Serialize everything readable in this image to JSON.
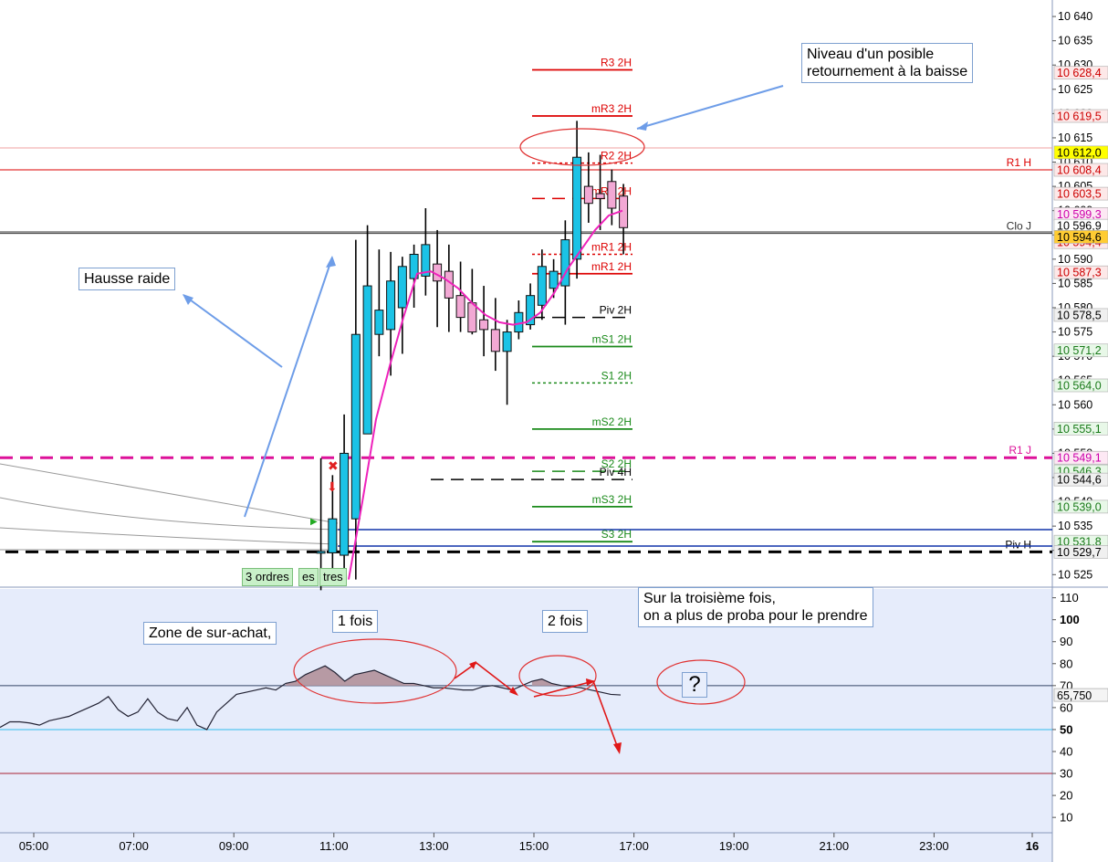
{
  "chart_data": [
    {
      "type": "candlestick",
      "price_axis": {
        "ticks": [
          10640,
          10635,
          10630,
          10625,
          10620,
          10615,
          10610,
          10605,
          10600,
          10595,
          10590,
          10585,
          10580,
          10575,
          10570,
          10565,
          10560,
          10555,
          10550,
          10545,
          10540,
          10535,
          10530,
          10525
        ],
        "range": [
          10522.8,
          10643.4
        ]
      },
      "time_axis": {
        "labels": [
          "05:00",
          "07:00",
          "09:00",
          "11:00",
          "13:00",
          "15:00",
          "17:00",
          "19:00",
          "21:00",
          "23:00",
          "16"
        ]
      },
      "candles": [
        {
          "o": 10529.8,
          "h": 10549.0,
          "l": 10521.8,
          "c": 10529.8,
          "up": true
        },
        {
          "o": 10529.5,
          "h": 10545.5,
          "l": 10524.0,
          "c": 10536.5,
          "up": true
        },
        {
          "o": 10529.0,
          "h": 10558.0,
          "l": 10524.0,
          "c": 10550.0,
          "up": true
        },
        {
          "o": 10536.5,
          "h": 10594.0,
          "l": 10524.0,
          "c": 10574.5,
          "up": true
        },
        {
          "o": 10554.0,
          "h": 10597.0,
          "l": 10554.0,
          "c": 10584.5,
          "up": true
        },
        {
          "o": 10574.5,
          "h": 10592.0,
          "l": 10570.0,
          "c": 10579.5,
          "up": true
        },
        {
          "o": 10575.5,
          "h": 10591.5,
          "l": 10566.0,
          "c": 10585.5,
          "up": true
        },
        {
          "o": 10580.0,
          "h": 10590.5,
          "l": 10570.5,
          "c": 10588.5,
          "up": true
        },
        {
          "o": 10586.0,
          "h": 10593.0,
          "l": 10580.0,
          "c": 10591.0,
          "up": true
        },
        {
          "o": 10586.5,
          "h": 10600.5,
          "l": 10582.5,
          "c": 10593.0,
          "up": true
        },
        {
          "o": 10589.0,
          "h": 10596.0,
          "l": 10576.0,
          "c": 10585.5,
          "up": false
        },
        {
          "o": 10587.5,
          "h": 10593.0,
          "l": 10575.0,
          "c": 10582.0,
          "up": false
        },
        {
          "o": 10582.5,
          "h": 10589.5,
          "l": 10575.0,
          "c": 10578.0,
          "up": false
        },
        {
          "o": 10581.0,
          "h": 10588.0,
          "l": 10574.5,
          "c": 10575.0,
          "up": false
        },
        {
          "o": 10577.5,
          "h": 10584.5,
          "l": 10570.0,
          "c": 10575.5,
          "up": false
        },
        {
          "o": 10575.5,
          "h": 10582.0,
          "l": 10567.0,
          "c": 10571.0,
          "up": false
        },
        {
          "o": 10571.0,
          "h": 10577.5,
          "l": 10560.0,
          "c": 10575.0,
          "up": true
        },
        {
          "o": 10575.0,
          "h": 10581.5,
          "l": 10573.5,
          "c": 10579.0,
          "up": true
        },
        {
          "o": 10576.5,
          "h": 10585.0,
          "l": 10575.5,
          "c": 10582.5,
          "up": true
        },
        {
          "o": 10580.5,
          "h": 10592.0,
          "l": 10577.5,
          "c": 10588.5,
          "up": true
        },
        {
          "o": 10584.0,
          "h": 10590.0,
          "l": 10582.0,
          "c": 10587.5,
          "up": true
        },
        {
          "o": 10584.5,
          "h": 10598.0,
          "l": 10576.5,
          "c": 10594.0,
          "up": true
        },
        {
          "o": 10590.0,
          "h": 10618.5,
          "l": 10586.0,
          "c": 10611.0,
          "up": true
        },
        {
          "o": 10605.0,
          "h": 10612.0,
          "l": 10597.5,
          "c": 10601.5,
          "up": false
        },
        {
          "o": 10603.5,
          "h": 10611.5,
          "l": 10596.0,
          "c": 10602.5,
          "up": false
        },
        {
          "o": 10606.0,
          "h": 10608.5,
          "l": 10597.0,
          "c": 10600.5,
          "up": false
        },
        {
          "o": 10603.0,
          "h": 10605.5,
          "l": 10591.0,
          "c": 10596.5,
          "up": false
        }
      ],
      "moving_average": [
        10524,
        10540,
        10557,
        10568,
        10578,
        10587,
        10587.5,
        10586,
        10584,
        10581,
        10578.5,
        10577,
        10576.5,
        10577,
        10579,
        10583,
        10588,
        10592,
        10596,
        10599,
        10600
      ],
      "levels": [
        {
          "label": "R3 2H",
          "value": 10629.0,
          "color": "#dd0000",
          "style": "solid"
        },
        {
          "label": "mR3 2H",
          "value": 10619.5,
          "color": "#dd0000",
          "style": "solid"
        },
        {
          "label": "R2 2H",
          "value": 10609.8,
          "color": "#dd0000",
          "style": "dotted"
        },
        {
          "label": "mR2 2H",
          "value": 10602.5,
          "color": "#dd0000",
          "style": "dashed"
        },
        {
          "label": "mR1 2H",
          "value": 10591.0,
          "color": "#dd0000",
          "style": "dotted"
        },
        {
          "label": "mR1 2H",
          "value": 10587.0,
          "color": "#dd0000",
          "style": "solid"
        },
        {
          "label": "Piv 2H",
          "value": 10578.0,
          "color": "#000000",
          "style": "dashed"
        },
        {
          "label": "mS1 2H",
          "value": 10572.0,
          "color": "#1a8a1a",
          "style": "solid"
        },
        {
          "label": "S1 2H",
          "value": 10564.5,
          "color": "#1a8a1a",
          "style": "dotted"
        },
        {
          "label": "mS2 2H",
          "value": 10555.0,
          "color": "#1a8a1a",
          "style": "solid"
        },
        {
          "label": "S2 2H",
          "value": 10546.3,
          "color": "#1a8a1a",
          "style": "dashed"
        },
        {
          "label": "Piv 4H",
          "value": 10544.6,
          "color": "#000000",
          "style": "dashed"
        },
        {
          "label": "mS3 2H",
          "value": 10539.0,
          "color": "#1a8a1a",
          "style": "solid"
        },
        {
          "label": "S3 2H",
          "value": 10531.8,
          "color": "#1a8a1a",
          "style": "solid"
        }
      ],
      "full_levels": [
        {
          "label": "R1 H",
          "value": 10608.4,
          "color": "#dd0000",
          "style": "solid",
          "width": 1
        },
        {
          "label": "Clo J",
          "value": 10595.3,
          "color": "#333333",
          "style": "solid",
          "width": 1
        },
        {
          "label": "R1 J",
          "value": 10549.1,
          "color": "#dd1199",
          "style": "dashed",
          "width": 3
        },
        {
          "label": "Piv H",
          "value": 10529.7,
          "color": "#000000",
          "style": "dashed",
          "width": 3
        }
      ],
      "price_tags": [
        {
          "label": "10 628,4",
          "value": 10628.4,
          "bg": "#fde8e8",
          "fg": "#cc0000"
        },
        {
          "label": "10 619,5",
          "value": 10619.5,
          "bg": "#fde8e8",
          "fg": "#cc0000"
        },
        {
          "label": "10 612,0",
          "value": 10612.0,
          "bg": "#ffff00",
          "fg": "#000000"
        },
        {
          "label": "10 608,4",
          "value": 10608.4,
          "bg": "#fde8e8",
          "fg": "#cc0000"
        },
        {
          "label": "10 603,5",
          "value": 10603.5,
          "bg": "#fde8e8",
          "fg": "#cc0000"
        },
        {
          "label": "10 599,3",
          "value": 10599.3,
          "bg": "#fde8f4",
          "fg": "#cc00aa"
        },
        {
          "label": "10 596,9",
          "value": 10596.9,
          "bg": "#ffffff",
          "fg": "#000000"
        },
        {
          "label": "10 594,4",
          "value": 10593.5,
          "bg": "#fde8e8",
          "fg": "#cc0000"
        },
        {
          "label": "10 594,6",
          "value": 10594.6,
          "bg": "#ffcc33",
          "fg": "#000000"
        },
        {
          "label": "10 587,3",
          "value": 10587.3,
          "bg": "#fde8e8",
          "fg": "#cc0000"
        },
        {
          "label": "10 578,5",
          "value": 10578.5,
          "bg": "#f0f0f0",
          "fg": "#000000"
        },
        {
          "label": "10 571,2",
          "value": 10571.2,
          "bg": "#e8f8e8",
          "fg": "#1a7a1a"
        },
        {
          "label": "10 564,0",
          "value": 10564.0,
          "bg": "#e8f8e8",
          "fg": "#1a7a1a"
        },
        {
          "label": "10 555,1",
          "value": 10555.1,
          "bg": "#e8f8e8",
          "fg": "#1a7a1a"
        },
        {
          "label": "10 549,1",
          "value": 10549.1,
          "bg": "#fde8f4",
          "fg": "#cc00aa"
        },
        {
          "label": "10 546,3",
          "value": 10546.3,
          "bg": "#e8f8e8",
          "fg": "#1a7a1a"
        },
        {
          "label": "10 544,6",
          "value": 10544.6,
          "bg": "#f0f0f0",
          "fg": "#000000"
        },
        {
          "label": "10 539,0",
          "value": 10539.0,
          "bg": "#e8f8e8",
          "fg": "#1a7a1a"
        },
        {
          "label": "10 531,8",
          "value": 10531.8,
          "bg": "#e8f8e8",
          "fg": "#1a7a1a"
        },
        {
          "label": "10 529,7",
          "value": 10529.7,
          "bg": "#f0f0f0",
          "fg": "#000000"
        }
      ]
    },
    {
      "type": "line",
      "ticks": [
        "110",
        "100",
        "90",
        "80",
        "70",
        "60",
        "50",
        "40",
        "30",
        "20",
        "10"
      ],
      "bold_ticks": [
        "100",
        "50"
      ],
      "range": [
        3,
        114
      ],
      "lines": [
        {
          "value": 70,
          "color": "#334466"
        },
        {
          "value": 50,
          "color": "#33bbee"
        },
        {
          "value": 30,
          "color": "#aa2233"
        }
      ],
      "current_label": "65,750",
      "current_value": 65.75,
      "values": [
        51,
        53.5,
        53.5,
        53,
        52,
        54,
        55,
        56,
        58,
        60,
        62,
        65,
        59,
        56,
        58,
        64,
        58,
        55,
        54,
        60,
        52,
        50,
        58,
        62,
        66,
        67,
        68,
        69,
        68,
        71,
        72,
        75,
        77,
        79,
        76,
        72,
        75,
        76,
        77,
        75,
        73,
        71,
        71,
        70,
        69,
        69,
        68.5,
        68,
        68,
        69.5,
        70,
        69,
        68,
        70,
        72,
        73,
        71,
        70,
        69.5,
        69,
        68,
        67,
        66,
        65.75
      ]
    }
  ],
  "annotations": {
    "reversal_note_line1": "Niveau d'un posible",
    "reversal_note_line2": "retournement à la baisse",
    "steep_rise": "Hausse raide",
    "overbought_zone": "Zone de sur-achat,",
    "first_time": "1 fois",
    "second_time": "2 fois",
    "third_time_line1": "Sur la troisième fois,",
    "third_time_line2": "on a plus de proba pour le prendre",
    "question_mark": "?",
    "orders_tag": "3 ordres",
    "orders_tag_2": "es",
    "orders_tag_3": "tres"
  }
}
